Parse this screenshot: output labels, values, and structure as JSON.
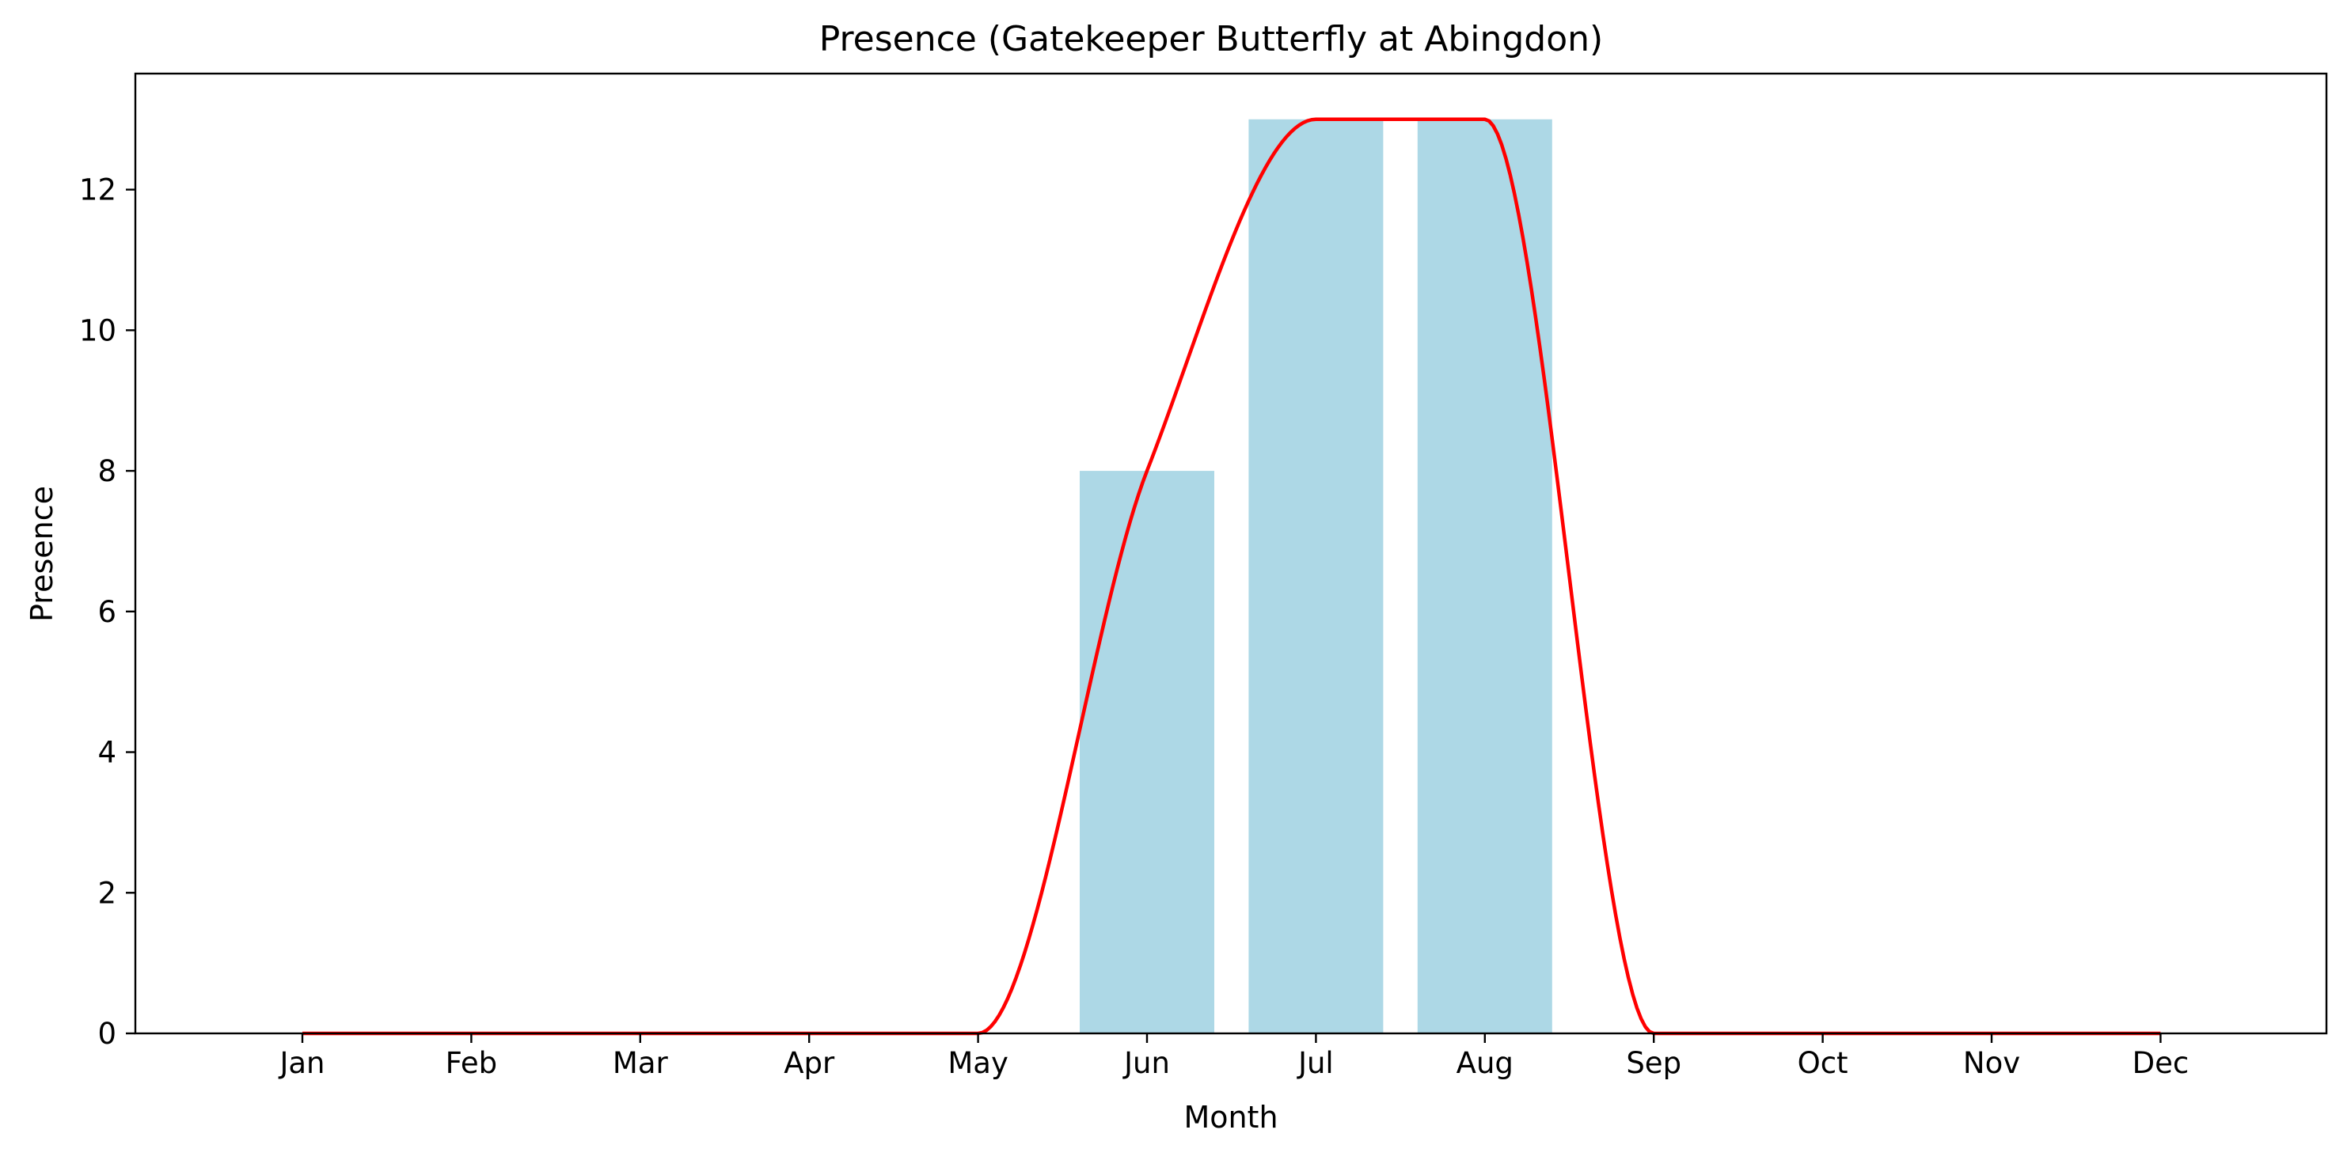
{
  "chart_data": {
    "type": "bar",
    "title": "Presence (Gatekeeper Butterfly at Abingdon)",
    "xlabel": "Month",
    "ylabel": "Presence",
    "categories": [
      "Jan",
      "Feb",
      "Mar",
      "Apr",
      "May",
      "Jun",
      "Jul",
      "Aug",
      "Sep",
      "Oct",
      "Nov",
      "Dec"
    ],
    "values": [
      0,
      0,
      0,
      0,
      0,
      8,
      13,
      13,
      0,
      0,
      0,
      0
    ],
    "ylim": [
      0,
      13.65
    ],
    "yticks": [
      0,
      2,
      4,
      6,
      8,
      10,
      12
    ],
    "grid": false,
    "legend": "none",
    "bar_color": "#add8e6",
    "curve": {
      "type": "line",
      "color": "#ff0000",
      "description_smoothing": "smoothed curve through monthly values",
      "x": [
        "Jan",
        "Feb",
        "Mar",
        "Apr",
        "May",
        "Jun",
        "Jul",
        "Aug",
        "Sep",
        "Oct",
        "Nov",
        "Dec"
      ],
      "values": [
        0,
        0,
        0,
        0,
        0,
        8,
        13,
        13,
        0,
        0,
        0,
        0
      ]
    }
  }
}
